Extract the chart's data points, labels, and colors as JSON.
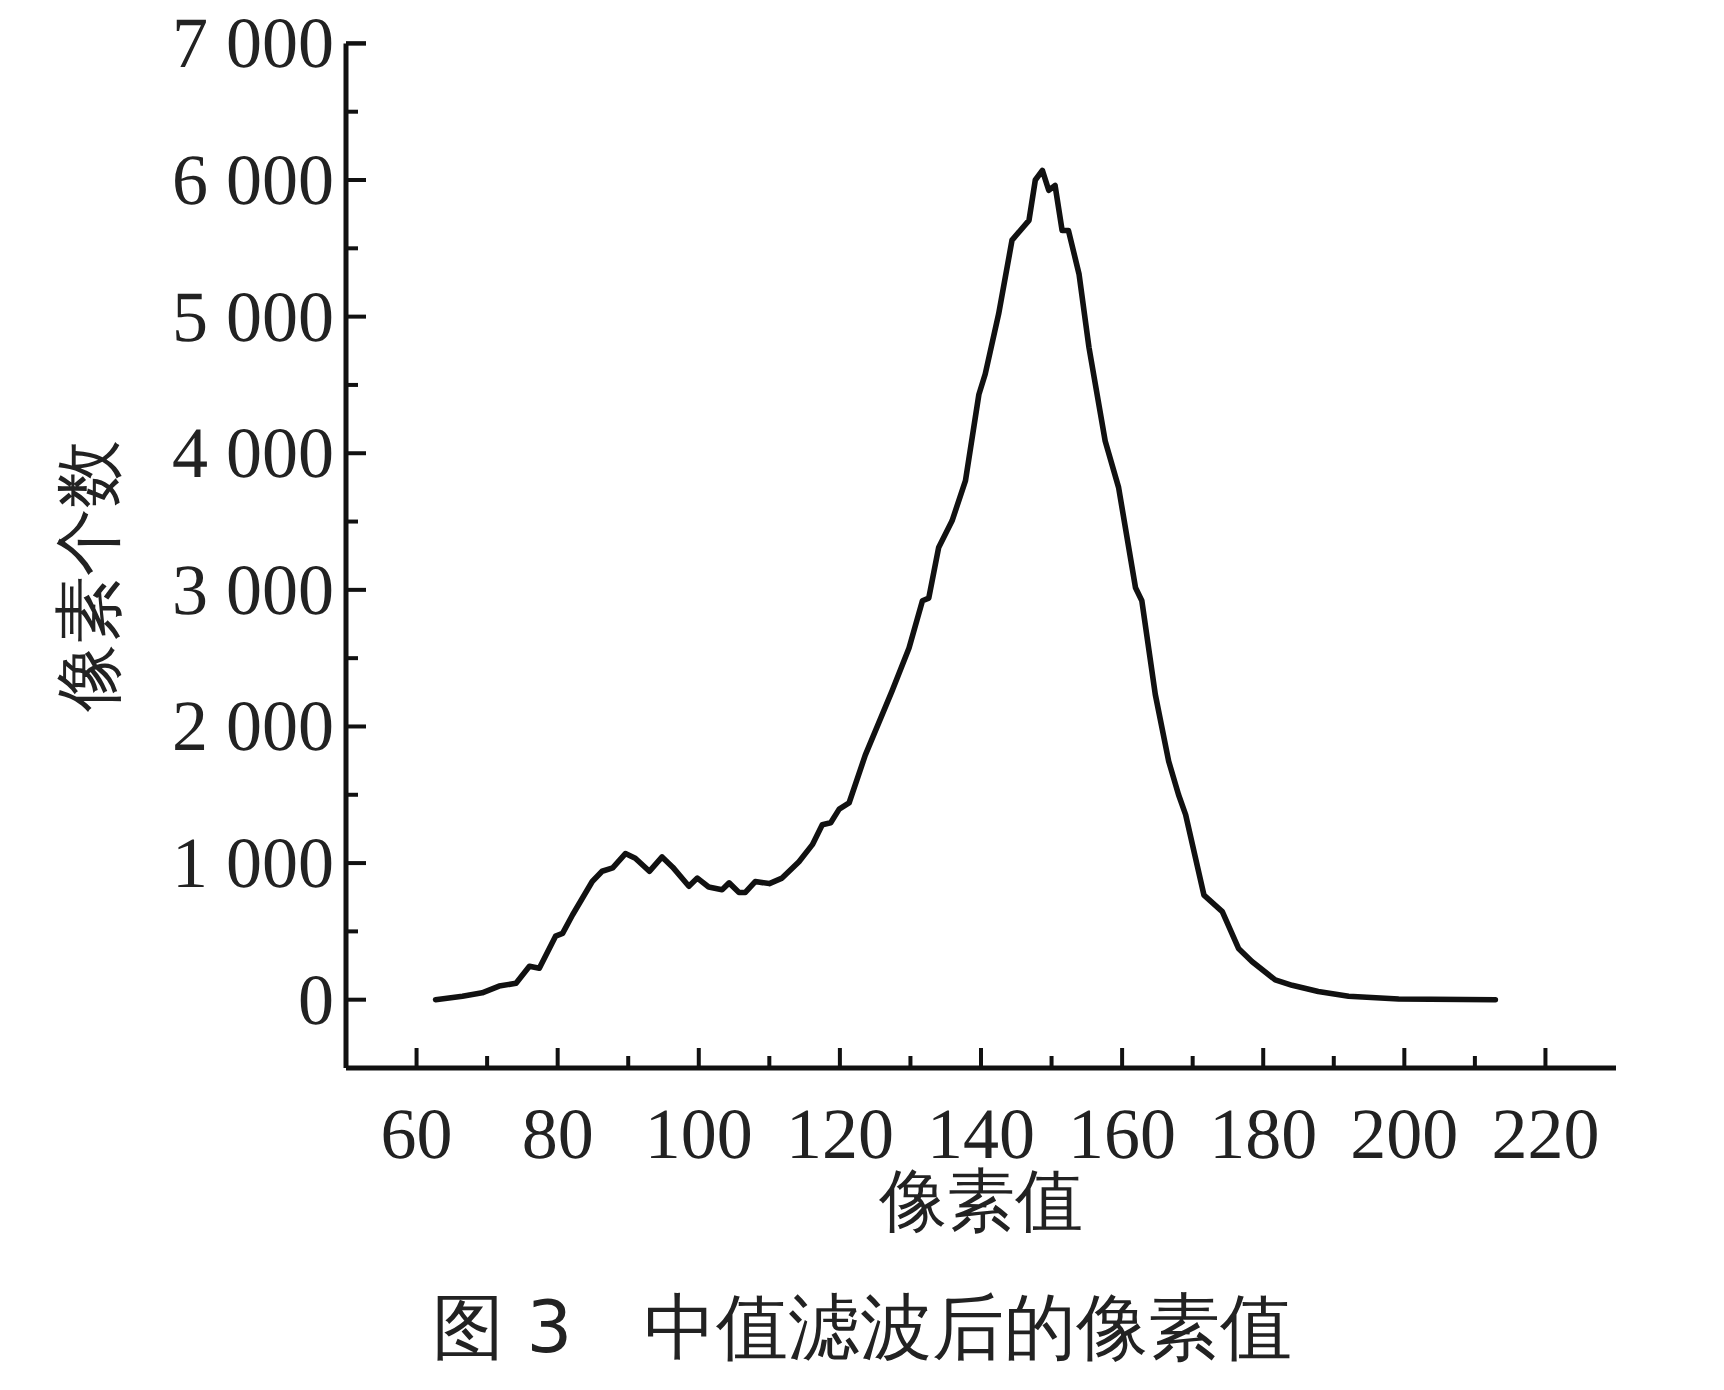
{
  "chart_data": {
    "type": "line",
    "title": "图 3　中值滤波后的像素值",
    "xlabel": "像素值",
    "ylabel": "像素个数",
    "xlim": [
      50,
      230
    ],
    "xticks": [
      60,
      {
        "value": 70,
        "label": null
      },
      80,
      {
        "value": 90,
        "label": null
      },
      100,
      {
        "value": 110,
        "label": null
      },
      120,
      {
        "value": 130,
        "label": null
      },
      140,
      {
        "value": 150,
        "label": null
      },
      160,
      {
        "value": 170,
        "label": null
      },
      180,
      {
        "value": 190,
        "label": null
      },
      200,
      {
        "value": 210,
        "label": null
      },
      220
    ],
    "ylim": [
      -500,
      7000
    ],
    "yticks": [
      {
        "value": 0,
        "label": "0"
      },
      {
        "value": 500,
        "label": null
      },
      {
        "value": 1000,
        "label": "1 000"
      },
      {
        "value": 1500,
        "label": null
      },
      {
        "value": 2000,
        "label": "2 000"
      },
      {
        "value": 2500,
        "label": null
      },
      {
        "value": 3000,
        "label": "3 000"
      },
      {
        "value": 3500,
        "label": null
      },
      {
        "value": 4000,
        "label": "4 000"
      },
      {
        "value": 4500,
        "label": null
      },
      {
        "value": 5000,
        "label": "5 000"
      },
      {
        "value": 5500,
        "label": null
      },
      {
        "value": 6000,
        "label": "6 000"
      },
      {
        "value": 6500,
        "label": null
      },
      {
        "value": 7000,
        "label": "7 000"
      }
    ],
    "grid": false,
    "marker": "none",
    "line_style": "solid",
    "series": [
      {
        "color": "#111111",
        "x": [
          62.7,
          66.5,
          69.3,
          71.7,
          74.1,
          76,
          77.4,
          79.7,
          80.7,
          82.1,
          84.9,
          86.3,
          87.8,
          89.6,
          91,
          93,
          94.8,
          96.3,
          98.6,
          99.8,
          101.4,
          103.3,
          104.3,
          105.7,
          106.6,
          108,
          110,
          111.8,
          114.2,
          116.1,
          117.5,
          118.7,
          119.9,
          121.3,
          123.6,
          127.4,
          129.8,
          131.7,
          132.6,
          134,
          135.9,
          137.8,
          139.7,
          140.6,
          142.5,
          144.4,
          146.8,
          147.7,
          148.7,
          149.6,
          150.5,
          151.5,
          152.4,
          153.9,
          155.3,
          157.6,
          159.5,
          161.9,
          162.8,
          164.7,
          166.6,
          168,
          169,
          171.6,
          174.2,
          176.5,
          178.4,
          181.7,
          184.1,
          187.8,
          192.1,
          199.2,
          212.9
        ],
        "values": [
          0,
          25,
          50,
          100,
          120,
          245,
          230,
          465,
          485,
          620,
          865,
          940,
          965,
          1070,
          1035,
          940,
          1045,
          970,
          830,
          890,
          825,
          805,
          855,
          785,
          785,
          865,
          850,
          890,
          1010,
          1135,
          1280,
          1295,
          1395,
          1440,
          1790,
          2260,
          2575,
          2920,
          2940,
          3310,
          3505,
          3800,
          4430,
          4580,
          5020,
          5560,
          5705,
          6000,
          6070,
          5925,
          5960,
          5630,
          5630,
          5310,
          4775,
          4090,
          3750,
          3015,
          2920,
          2235,
          1745,
          1500,
          1355,
          765,
          645,
          375,
          280,
          145,
          105,
          60,
          25,
          5,
          0
        ]
      }
    ]
  }
}
